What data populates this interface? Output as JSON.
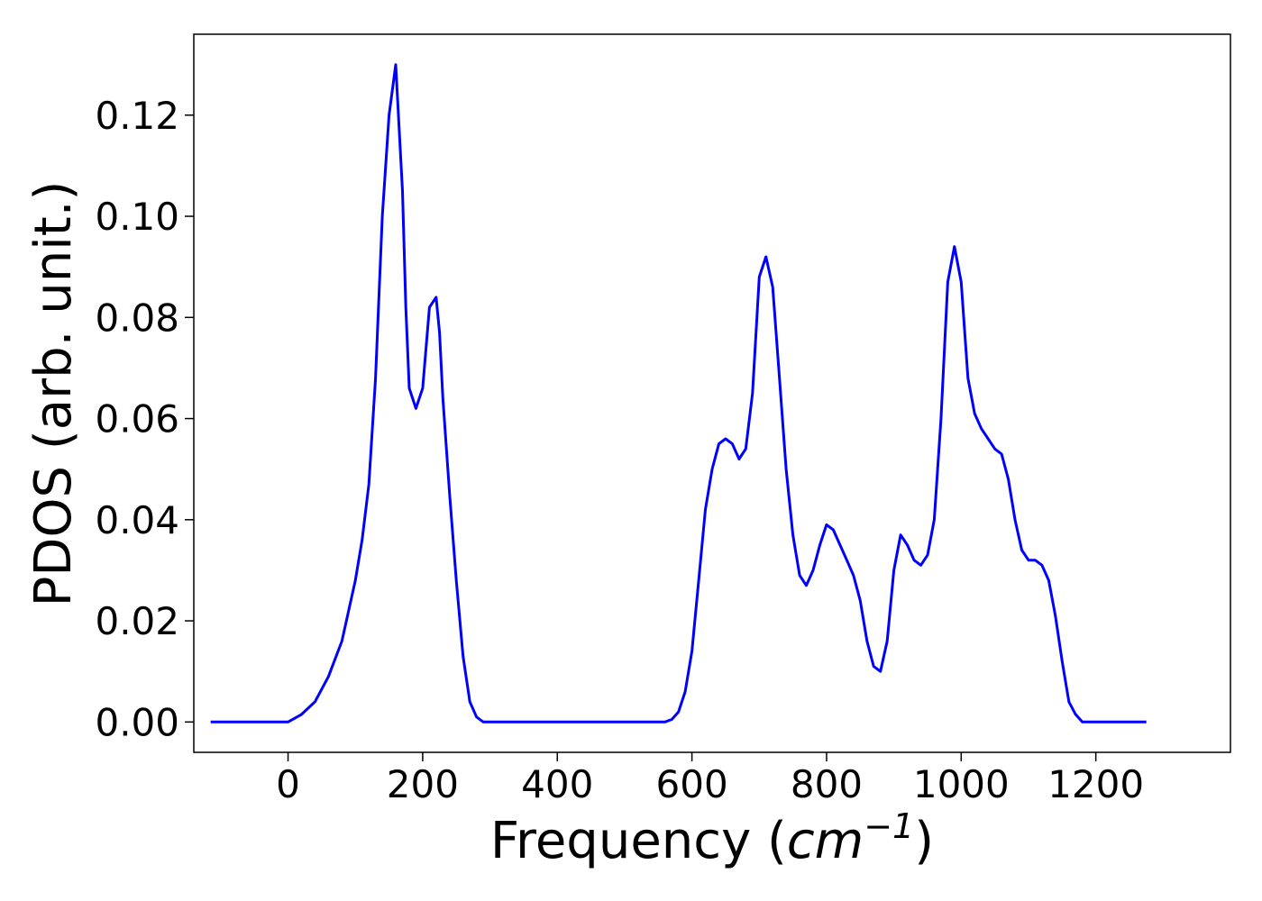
{
  "chart_data": {
    "type": "line",
    "title": "",
    "xlabel": "Frequency",
    "xlabel_unit": "cm",
    "xlabel_unit_exp": "−1",
    "ylabel": "PDOS (arb. unit.)",
    "xlim": [
      -140,
      1400
    ],
    "ylim": [
      -0.006,
      0.136
    ],
    "xticks": [
      0,
      200,
      400,
      600,
      800,
      1000,
      1200
    ],
    "xtick_labels": [
      "0",
      "200",
      "400",
      "600",
      "800",
      "1000",
      "1200"
    ],
    "yticks": [
      0.0,
      0.02,
      0.04,
      0.06,
      0.08,
      0.1,
      0.12
    ],
    "ytick_labels": [
      "0.00",
      "0.02",
      "0.04",
      "0.06",
      "0.08",
      "0.10",
      "0.12"
    ],
    "grid": false,
    "line_color": "#0000ff",
    "x": [
      -115,
      0,
      20,
      40,
      60,
      80,
      100,
      110,
      120,
      130,
      140,
      150,
      160,
      170,
      175,
      180,
      190,
      200,
      210,
      220,
      225,
      230,
      240,
      250,
      260,
      270,
      280,
      290,
      300,
      400,
      500,
      560,
      570,
      580,
      590,
      600,
      610,
      620,
      630,
      640,
      650,
      660,
      670,
      680,
      690,
      700,
      710,
      720,
      730,
      740,
      750,
      760,
      770,
      780,
      790,
      800,
      810,
      820,
      830,
      840,
      850,
      860,
      870,
      880,
      890,
      900,
      910,
      920,
      930,
      940,
      950,
      960,
      970,
      980,
      990,
      1000,
      1010,
      1020,
      1030,
      1040,
      1050,
      1060,
      1070,
      1080,
      1090,
      1100,
      1110,
      1120,
      1130,
      1140,
      1150,
      1160,
      1170,
      1180,
      1190,
      1200,
      1275
    ],
    "y": [
      0.0,
      0.0,
      0.0015,
      0.004,
      0.009,
      0.016,
      0.028,
      0.036,
      0.047,
      0.068,
      0.1,
      0.12,
      0.13,
      0.105,
      0.082,
      0.066,
      0.062,
      0.066,
      0.082,
      0.084,
      0.077,
      0.064,
      0.045,
      0.028,
      0.013,
      0.004,
      0.001,
      0.0,
      0.0,
      0.0,
      0.0,
      0.0,
      0.0005,
      0.002,
      0.006,
      0.014,
      0.028,
      0.042,
      0.05,
      0.055,
      0.056,
      0.055,
      0.052,
      0.054,
      0.065,
      0.088,
      0.092,
      0.086,
      0.068,
      0.05,
      0.037,
      0.029,
      0.027,
      0.03,
      0.035,
      0.039,
      0.038,
      0.035,
      0.032,
      0.029,
      0.024,
      0.016,
      0.011,
      0.01,
      0.016,
      0.03,
      0.037,
      0.035,
      0.032,
      0.031,
      0.033,
      0.04,
      0.06,
      0.087,
      0.094,
      0.087,
      0.068,
      0.061,
      0.058,
      0.056,
      0.054,
      0.053,
      0.048,
      0.04,
      0.034,
      0.032,
      0.032,
      0.031,
      0.028,
      0.021,
      0.012,
      0.004,
      0.0015,
      0.0,
      0.0,
      0.0,
      0.0
    ]
  }
}
